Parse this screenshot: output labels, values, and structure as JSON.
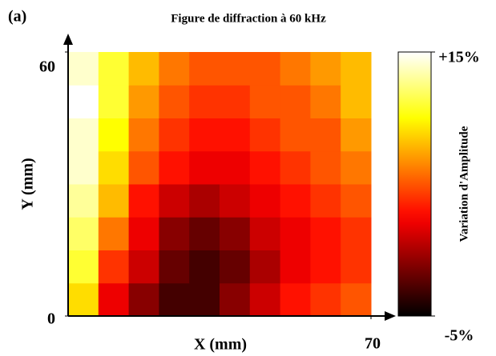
{
  "chart_data": {
    "type": "heatmap",
    "panel_label": "(a)",
    "title": "Figure de diffraction à 60 kHz",
    "xlabel": "X (mm)",
    "ylabel": "Y (mm)",
    "colorbar_label": "Variation d'Amplitude",
    "colormap": "hot",
    "xlim": [
      0,
      70
    ],
    "ylim": [
      0,
      60
    ],
    "xticks": [
      70
    ],
    "yticks": [
      0,
      60
    ],
    "clim": [
      -5,
      15
    ],
    "cticks": [
      {
        "value": 15,
        "label": "+15%"
      },
      {
        "value": -5,
        "label": "-5%"
      }
    ],
    "x": [
      3.5,
      10.5,
      17.5,
      24.5,
      31.5,
      38.5,
      45.5,
      52.5,
      59.5,
      66.5
    ],
    "y": [
      3.75,
      11.25,
      18.75,
      26.25,
      33.75,
      41.25,
      48.75,
      56.25
    ],
    "z": [
      [
        9,
        2,
        -1,
        -3,
        -3,
        -1,
        1,
        3,
        4,
        5
      ],
      [
        11,
        4,
        1,
        -2,
        -3,
        -2,
        0,
        2,
        3,
        4
      ],
      [
        12,
        6,
        2,
        -1,
        -2,
        -1,
        1,
        2,
        3,
        4
      ],
      [
        13,
        8,
        3,
        1,
        0,
        1,
        2,
        3,
        4,
        5
      ],
      [
        14,
        9,
        5,
        3,
        2,
        2,
        3,
        4,
        5,
        6
      ],
      [
        14,
        10,
        6,
        4,
        3,
        3,
        4,
        5,
        5,
        7
      ],
      [
        15,
        11,
        7,
        5,
        4,
        4,
        5,
        5,
        6,
        8
      ],
      [
        14,
        11,
        8,
        6,
        5,
        5,
        5,
        6,
        7,
        8
      ]
    ]
  }
}
